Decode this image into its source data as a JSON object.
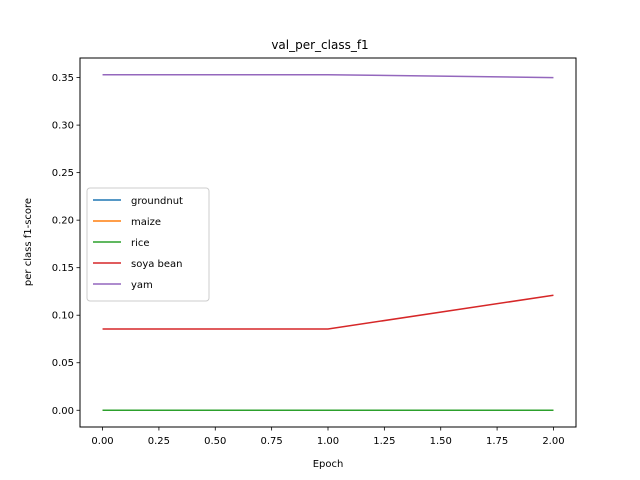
{
  "chart_data": {
    "type": "line",
    "title": "val_per_class_f1",
    "xlabel": "Epoch",
    "ylabel": "per class f1-score",
    "x": [
      0,
      1,
      2
    ],
    "xlim": [
      -0.1,
      2.1
    ],
    "ylim": [
      -0.0176,
      0.3706
    ],
    "xticks": [
      "0.00",
      "0.25",
      "0.50",
      "0.75",
      "1.00",
      "1.25",
      "1.50",
      "1.75",
      "2.00"
    ],
    "yticks": [
      "0.00",
      "0.05",
      "0.10",
      "0.15",
      "0.20",
      "0.25",
      "0.30",
      "0.35"
    ],
    "grid": false,
    "legend_position": "center-left",
    "series": [
      {
        "name": "groundnut",
        "color": "#1f77b4",
        "values": [
          0.0,
          0.0,
          0.0
        ]
      },
      {
        "name": "maize",
        "color": "#ff7f0e",
        "values": [
          0.0,
          0.0,
          0.0
        ]
      },
      {
        "name": "rice",
        "color": "#2ca02c",
        "values": [
          0.0,
          0.0,
          0.0
        ]
      },
      {
        "name": "soya bean",
        "color": "#d62728",
        "values": [
          0.0855,
          0.0855,
          0.121
        ]
      },
      {
        "name": "yam",
        "color": "#9467bd",
        "values": [
          0.353,
          0.353,
          0.35
        ]
      }
    ]
  }
}
